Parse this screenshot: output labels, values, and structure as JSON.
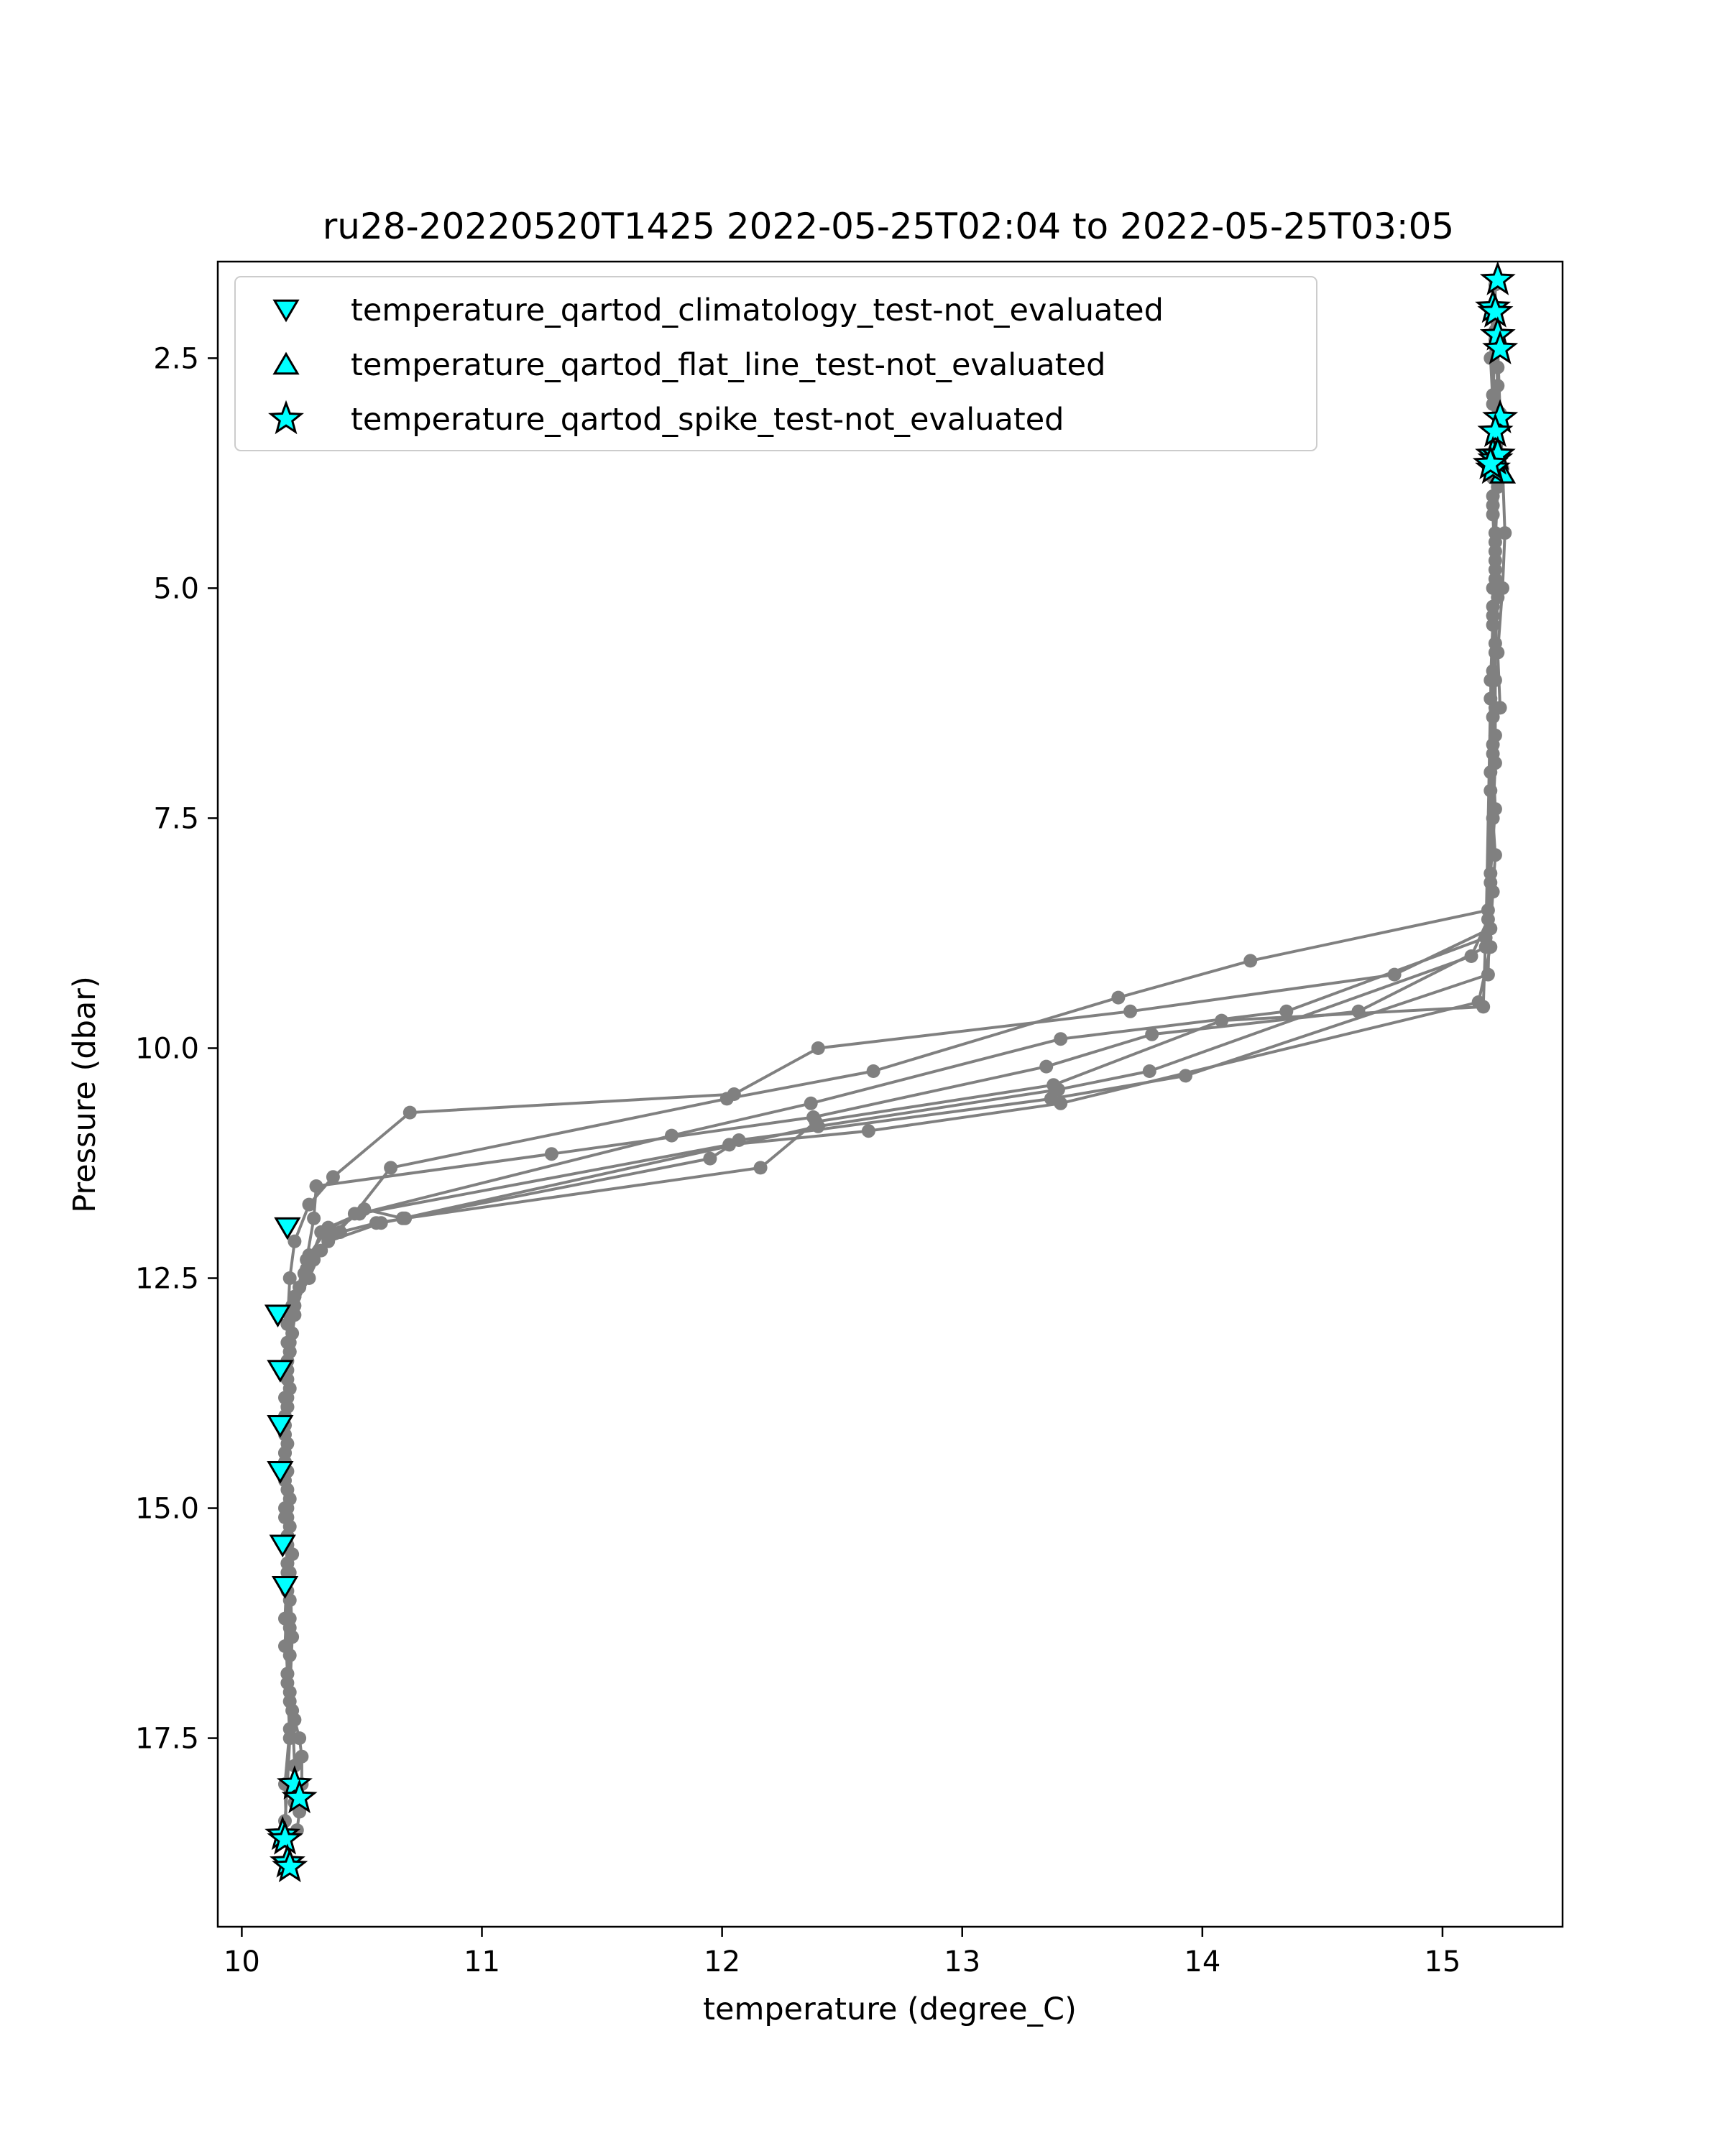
{
  "chart_data": {
    "type": "scatter",
    "title": "ru28-20220520T1425 2022-05-25T02:04 to 2022-05-25T03:05",
    "xlabel": "temperature (degree_C)",
    "ylabel": "Pressure (dbar)",
    "xlim": [
      9.9,
      15.5
    ],
    "ylim": [
      19.55,
      1.45
    ],
    "y_inverted": true,
    "xticks": [
      10,
      11,
      12,
      13,
      14,
      15
    ],
    "yticks": [
      2.5,
      5.0,
      7.5,
      10.0,
      12.5,
      15.0,
      17.5
    ],
    "xtick_labels": [
      "10",
      "11",
      "12",
      "13",
      "14",
      "15"
    ],
    "ytick_labels": [
      "2.5",
      "5.0",
      "7.5",
      "10.0",
      "12.5",
      "15.0",
      "17.5"
    ],
    "grid": false,
    "legend_position": "top-left",
    "profile_color": "#808080",
    "marker_fill": "#00ffff",
    "marker_edge": "#000000",
    "profiles": [
      {
        "x": [
          15.22,
          15.22,
          15.23,
          15.22,
          15.23,
          15.22,
          15.23,
          15.22,
          15.22,
          15.22,
          15.21,
          15.22,
          15.21,
          15.2,
          14.8,
          13.7,
          12.4,
          12.05,
          10.7,
          10.38,
          10.28,
          10.22,
          10.2,
          10.19,
          10.19,
          10.18,
          10.19,
          10.19,
          10.2,
          10.2,
          10.21,
          10.22,
          10.22
        ],
        "y": [
          1.7,
          2.2,
          2.8,
          3.4,
          3.9,
          4.5,
          5.1,
          5.7,
          6.3,
          6.9,
          7.5,
          7.9,
          8.3,
          8.7,
          9.2,
          9.6,
          10.0,
          10.5,
          10.7,
          11.4,
          11.7,
          12.1,
          12.5,
          13.0,
          13.6,
          14.2,
          14.8,
          15.4,
          16.0,
          16.6,
          17.2,
          17.8,
          18.2
        ]
      },
      {
        "x": [
          15.21,
          15.2,
          15.21,
          15.22,
          15.21,
          15.22,
          15.21,
          15.2,
          15.21,
          15.19,
          14.2,
          13.65,
          12.63,
          12.02,
          10.62,
          10.47,
          10.33,
          10.28,
          10.22,
          10.2,
          10.19,
          10.18,
          10.18,
          10.19,
          10.2,
          10.19,
          10.2,
          10.19,
          10.18,
          10.17
        ],
        "y": [
          1.95,
          2.5,
          3.0,
          3.6,
          4.2,
          4.8,
          5.4,
          6.0,
          6.7,
          8.5,
          9.05,
          9.45,
          10.25,
          10.55,
          11.3,
          11.8,
          12.2,
          12.5,
          12.8,
          13.3,
          13.9,
          14.5,
          15.1,
          15.7,
          16.3,
          16.9,
          17.5,
          18.0,
          18.4,
          18.6
        ]
      },
      {
        "x": [
          15.22,
          15.21,
          15.22,
          15.21,
          15.22,
          15.21,
          15.2,
          15.18,
          14.65,
          13.79,
          13.35,
          12.38,
          11.29,
          10.31,
          10.3,
          10.27,
          10.22,
          10.2,
          10.19,
          10.18,
          10.18,
          10.19,
          10.18,
          10.19,
          10.2,
          10.18,
          10.19
        ],
        "y": [
          2.3,
          2.9,
          3.5,
          4.1,
          4.7,
          5.3,
          6.2,
          8.9,
          9.6,
          9.85,
          10.2,
          10.75,
          11.15,
          11.5,
          11.85,
          12.3,
          12.7,
          13.2,
          13.8,
          14.4,
          15.0,
          15.6,
          16.2,
          16.8,
          17.4,
          18.0,
          18.9
        ]
      },
      {
        "x": [
          15.23,
          15.22,
          15.21,
          15.22,
          15.21,
          15.2,
          15.18,
          14.35,
          13.41,
          12.37,
          11.79,
          10.49,
          10.33,
          10.27,
          10.22,
          10.19,
          10.18,
          10.18,
          10.19,
          10.19,
          10.18
        ],
        "y": [
          2.6,
          3.3,
          4.0,
          4.6,
          5.2,
          7.0,
          8.8,
          9.6,
          9.9,
          10.6,
          10.95,
          11.8,
          12.0,
          12.4,
          12.9,
          13.5,
          14.1,
          14.7,
          15.3,
          15.9,
          16.5
        ]
      },
      {
        "x": [
          15.21,
          15.22,
          15.21,
          15.22,
          15.21,
          15.2,
          15.17,
          14.08,
          13.38,
          12.39,
          12.16,
          10.68,
          10.56,
          10.41,
          10.3,
          10.24,
          10.2,
          10.19,
          10.18,
          10.19,
          10.2
        ],
        "y": [
          3.8,
          4.4,
          5.0,
          5.6,
          6.4,
          7.2,
          9.55,
          9.7,
          10.4,
          10.8,
          11.3,
          11.85,
          11.9,
          12.0,
          12.3,
          12.6,
          12.9,
          13.4,
          14.0,
          14.6,
          15.2
        ]
      },
      {
        "x": [
          15.22,
          15.21,
          15.22,
          15.2,
          15.19,
          13.93,
          13.37,
          12.07,
          11.95,
          10.58,
          10.36,
          10.26,
          10.21,
          10.2,
          10.19,
          10.18,
          10.19,
          10.2,
          10.21,
          10.2
        ],
        "y": [
          4.9,
          5.9,
          6.6,
          8.2,
          9.2,
          10.3,
          10.55,
          11.0,
          11.2,
          11.9,
          12.1,
          12.45,
          12.8,
          13.3,
          13.9,
          14.5,
          15.1,
          15.7,
          16.4,
          17.0
        ]
      },
      {
        "x": [
          15.22,
          15.21,
          15.22,
          15.2,
          15.19,
          15.12,
          13.78,
          13.4,
          12.4,
          10.67,
          10.51,
          10.38,
          10.28,
          10.22,
          10.19,
          10.18,
          10.18,
          10.19,
          10.19,
          10.2
        ],
        "y": [
          6.0,
          6.8,
          7.4,
          8.1,
          8.6,
          9.0,
          10.25,
          10.45,
          10.85,
          11.85,
          11.75,
          12.0,
          12.35,
          12.7,
          13.2,
          13.8,
          14.4,
          15.0,
          15.6,
          16.2
        ]
      },
      {
        "x": [
          15.2,
          15.15,
          13.41,
          12.61,
          12.03,
          10.49,
          10.36,
          10.28,
          10.24,
          10.21,
          10.2,
          10.19,
          10.2,
          10.21
        ],
        "y": [
          8.9,
          9.5,
          10.6,
          10.9,
          11.05,
          11.8,
          11.95,
          12.25,
          12.6,
          13.1,
          13.7,
          14.3,
          14.9,
          15.5
        ]
      },
      {
        "x": [
          15.21,
          15.23,
          15.24,
          15.25,
          15.26,
          15.25,
          15.23,
          15.24
        ],
        "y": [
          2.0,
          2.4,
          3.1,
          3.7,
          4.4,
          5.0,
          5.7,
          6.3
        ]
      },
      {
        "x": [
          10.19,
          10.2,
          10.22,
          10.24,
          10.25,
          10.25,
          10.24,
          10.23
        ],
        "y": [
          16.8,
          17.1,
          17.3,
          17.5,
          17.7,
          18.0,
          18.3,
          18.5
        ]
      }
    ],
    "series": [
      {
        "name": "temperature_qartod_climatology_test-not_evaluated",
        "marker": "triangle-down",
        "x": [
          10.19,
          10.15,
          10.16,
          10.16,
          10.16,
          10.17,
          10.18
        ],
        "y": [
          11.95,
          12.9,
          13.5,
          14.1,
          14.6,
          15.4,
          15.85
        ]
      },
      {
        "name": "temperature_qartod_flat_line_test-not_evaluated",
        "marker": "triangle-up",
        "x": [
          15.25
        ],
        "y": [
          3.75
        ]
      },
      {
        "name": "temperature_qartod_spike_test-not_evaluated",
        "marker": "star",
        "x": [
          15.23,
          15.21,
          15.22,
          15.23,
          15.24,
          15.24,
          15.22,
          15.21,
          15.22,
          15.23,
          15.21,
          15.2,
          10.22,
          10.24,
          10.17,
          10.18,
          10.19,
          10.2
        ],
        "y": [
          1.65,
          1.95,
          2.0,
          2.25,
          2.4,
          3.15,
          3.3,
          3.55,
          3.6,
          3.55,
          3.7,
          3.65,
          18.0,
          18.15,
          18.55,
          18.6,
          18.85,
          18.9
        ]
      }
    ]
  }
}
